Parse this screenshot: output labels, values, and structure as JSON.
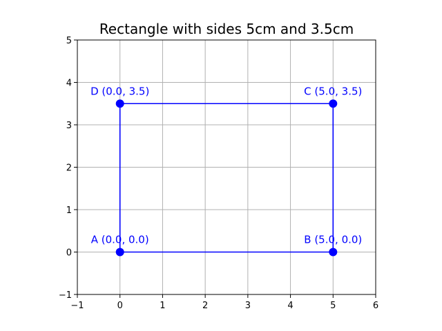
{
  "chart_data": {
    "type": "line",
    "title": "Rectangle with sides 5cm and 3.5cm",
    "xlabel": "",
    "ylabel": "",
    "xlim": [
      -1,
      6
    ],
    "ylim": [
      -1,
      5
    ],
    "xticks": [
      -1,
      0,
      1,
      2,
      3,
      4,
      5,
      6
    ],
    "yticks": [
      -1,
      0,
      1,
      2,
      3,
      4,
      5
    ],
    "xtick_labels": [
      "−1",
      "0",
      "1",
      "2",
      "3",
      "4",
      "5",
      "6"
    ],
    "ytick_labels": [
      "−1",
      "0",
      "1",
      "2",
      "3",
      "4",
      "5"
    ],
    "grid": true,
    "color": "#0000ff",
    "points": [
      {
        "name": "A",
        "x": 0,
        "y": 0,
        "label": "A (0.0, 0.0)"
      },
      {
        "name": "B",
        "x": 5,
        "y": 0,
        "label": "B (5.0, 0.0)"
      },
      {
        "name": "C",
        "x": 5,
        "y": 3.5,
        "label": "C (5.0, 3.5)"
      },
      {
        "name": "D",
        "x": 0,
        "y": 3.5,
        "label": "D (0.0, 3.5)"
      }
    ],
    "closed": true
  }
}
